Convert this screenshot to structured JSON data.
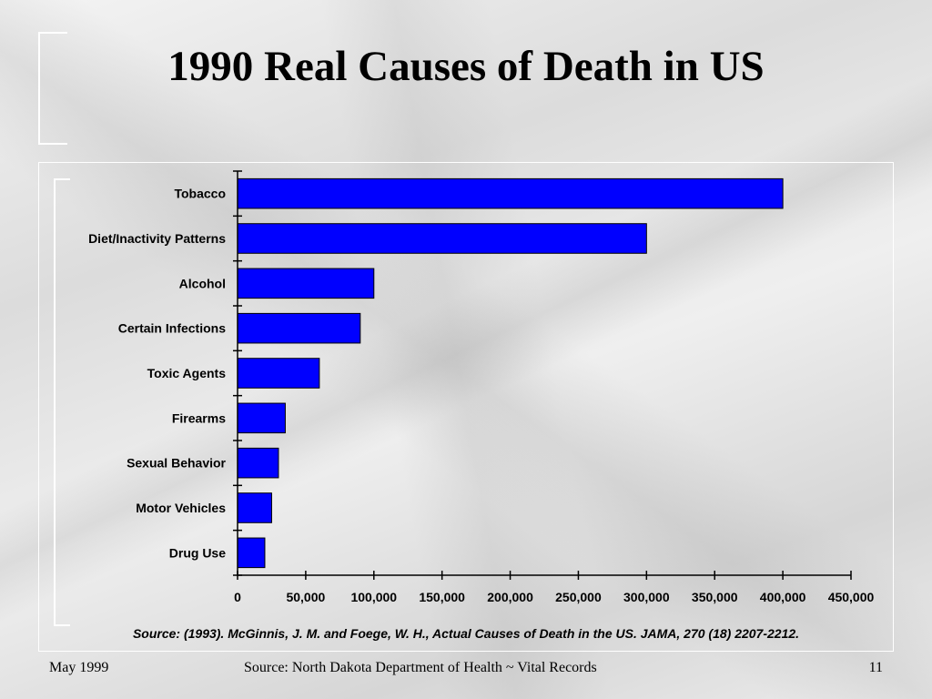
{
  "slide": {
    "title": "1990 Real Causes of Death in US",
    "source_note": "Source:  (1993).  McGinnis, J. M. and Foege, W. H., Actual Causes of Death in the US.  JAMA, 270 (18) 2207-2212.",
    "footer": {
      "date": "May 1999",
      "source": "Source:  North Dakota Department of Health ~ Vital Records",
      "page_number": "11"
    }
  },
  "chart_data": {
    "type": "bar",
    "orientation": "horizontal",
    "title": "",
    "xlabel": "",
    "ylabel": "",
    "categories": [
      "Tobacco",
      "Diet/Inactivity Patterns",
      "Alcohol",
      "Certain Infections",
      "Toxic Agents",
      "Firearms",
      "Sexual Behavior",
      "Motor Vehicles",
      "Drug Use"
    ],
    "values": [
      400000,
      300000,
      100000,
      90000,
      60000,
      35000,
      30000,
      25000,
      20000
    ],
    "xlim": [
      0,
      450000
    ],
    "x_ticks": [
      0,
      50000,
      100000,
      150000,
      200000,
      250000,
      300000,
      350000,
      400000,
      450000
    ],
    "x_tick_labels": [
      "0",
      "50,000",
      "100,000",
      "150,000",
      "200,000",
      "250,000",
      "300,000",
      "350,000",
      "400,000",
      "450,000"
    ],
    "grid": false,
    "legend": "none",
    "bar_color": "#0000ff"
  }
}
